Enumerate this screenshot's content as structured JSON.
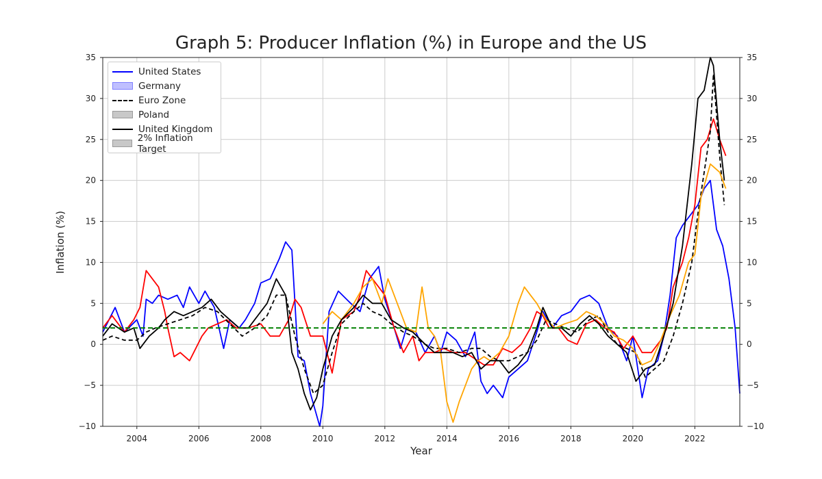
{
  "chart_data": {
    "type": "line",
    "title": "Graph 5: Producer Inflation (%) in Europe and the US",
    "xlabel": "Year",
    "ylabel": "Inflation (%)",
    "xlim": [
      2002.9,
      2023.45
    ],
    "ylim": [
      -10,
      35
    ],
    "x_ticks": [
      "2004",
      "2006",
      "2008",
      "2010",
      "2012",
      "2014",
      "2016",
      "2018",
      "2020",
      "2022"
    ],
    "y_ticks": [
      "−10",
      "−5",
      "0",
      "5",
      "10",
      "15",
      "20",
      "25",
      "30",
      "35"
    ],
    "grid": true,
    "legend_position": "top-left",
    "legend": [
      {
        "label": "United States",
        "style": "line",
        "color": "#0000ff"
      },
      {
        "label": "Germany",
        "style": "patch",
        "color": "#bfbfff"
      },
      {
        "label": "Euro Zone",
        "style": "dashed",
        "color": "#000000"
      },
      {
        "label": "Poland",
        "style": "patch",
        "color": "#c8c8c8"
      },
      {
        "label": "United Kingdom",
        "style": "line",
        "color": "#000000"
      },
      {
        "label": "2% Inflation Target",
        "style": "patch",
        "color": "#c8c8c8"
      }
    ],
    "target_line": {
      "y": 2,
      "color": "#008000"
    },
    "series": [
      {
        "name": "United States",
        "color": "#0000ff",
        "dash": "",
        "x": [
          2002.9,
          2003.1,
          2003.3,
          2003.6,
          2004.0,
          2004.2,
          2004.3,
          2004.5,
          2004.7,
          2005.0,
          2005.3,
          2005.5,
          2005.7,
          2006.0,
          2006.2,
          2006.5,
          2006.8,
          2007.0,
          2007.3,
          2007.5,
          2007.8,
          2008.0,
          2008.3,
          2008.6,
          2008.8,
          2009.0,
          2009.2,
          2009.4,
          2009.6,
          2009.9,
          2010.0,
          2010.2,
          2010.5,
          2010.9,
          2011.2,
          2011.5,
          2011.8,
          2012.0,
          2012.3,
          2012.5,
          2012.7,
          2013.0,
          2013.3,
          2013.6,
          2013.8,
          2014.0,
          2014.3,
          2014.6,
          2014.9,
          2015.1,
          2015.3,
          2015.5,
          2015.8,
          2016.0,
          2016.3,
          2016.6,
          2016.9,
          2017.1,
          2017.4,
          2017.7,
          2018.0,
          2018.3,
          2018.6,
          2018.9,
          2019.2,
          2019.5,
          2019.8,
          2020.0,
          2020.3,
          2020.5,
          2020.8,
          2021.0,
          2021.2,
          2021.4,
          2021.6,
          2021.9,
          2022.1,
          2022.3,
          2022.5,
          2022.7,
          2022.9,
          2023.1,
          2023.3,
          2023.45
        ],
        "y": [
          1.5,
          3,
          4.5,
          1.5,
          3,
          1,
          5.5,
          5,
          6,
          5.5,
          6,
          4.5,
          7,
          5,
          6.5,
          4.5,
          -0.5,
          3,
          2,
          3,
          5,
          7.5,
          8,
          10.5,
          12.5,
          11.5,
          -1.5,
          -2,
          -6,
          -10,
          -7.5,
          4,
          6.5,
          5,
          4,
          8,
          9.5,
          5.5,
          2,
          -0.5,
          2,
          1.5,
          -1,
          1,
          -1,
          1.5,
          0.5,
          -1.5,
          1.5,
          -4.5,
          -6,
          -5,
          -6.5,
          -4,
          -3,
          -2,
          1.5,
          4,
          2,
          3.5,
          4,
          5.5,
          6,
          5,
          2,
          1,
          -2,
          1,
          -6.5,
          -3,
          -2,
          1,
          6,
          13,
          14.5,
          16,
          17,
          19,
          20,
          14,
          12,
          8,
          2,
          -6
        ]
      },
      {
        "name": "Germany",
        "color": "#ff0000",
        "dash": "",
        "x": [
          2002.9,
          2003.2,
          2003.6,
          2003.9,
          2004.1,
          2004.3,
          2004.5,
          2004.7,
          2004.9,
          2005.0,
          2005.2,
          2005.4,
          2005.7,
          2005.9,
          2006.1,
          2006.3,
          2006.6,
          2006.9,
          2007.2,
          2007.6,
          2008.0,
          2008.3,
          2008.6,
          2008.9,
          2009.1,
          2009.3,
          2009.6,
          2009.8,
          2010.0,
          2010.3,
          2010.6,
          2011.0,
          2011.2,
          2011.4,
          2011.6,
          2011.8,
          2012.0,
          2012.3,
          2012.6,
          2012.9,
          2013.1,
          2013.3,
          2013.6,
          2013.9,
          2014.2,
          2014.6,
          2015.0,
          2015.2,
          2015.5,
          2015.8,
          2016.1,
          2016.4,
          2016.7,
          2016.9,
          2017.1,
          2017.3,
          2017.6,
          2017.9,
          2018.2,
          2018.5,
          2018.8,
          2019.1,
          2019.4,
          2019.7,
          2020.0,
          2020.3,
          2020.6,
          2020.9,
          2021.1,
          2021.3,
          2021.6,
          2021.8,
          2022.0,
          2022.2,
          2022.4,
          2022.6,
          2022.8,
          2023.0
        ],
        "y": [
          2,
          3.5,
          1.5,
          3,
          4.5,
          9,
          8,
          7,
          4,
          2,
          -1.5,
          -1,
          -2,
          -0.5,
          1,
          2,
          2.5,
          3,
          2,
          2,
          2.5,
          1,
          1,
          3,
          5.5,
          4.5,
          1,
          1,
          1,
          -3.5,
          3,
          4,
          6,
          9,
          8,
          7,
          6,
          2,
          -1,
          1,
          -2,
          -1,
          -1,
          -0.5,
          -1,
          -1,
          -2,
          -2.5,
          -2.5,
          -0.5,
          -1,
          0,
          2,
          4,
          3.5,
          2,
          2,
          0.5,
          0,
          2.5,
          3,
          2,
          1.5,
          -0.5,
          1,
          -1,
          -1,
          0.5,
          2,
          7,
          10,
          13,
          17,
          24,
          25,
          27.5,
          25,
          23
        ]
      },
      {
        "name": "Euro Zone",
        "color": "#000000",
        "dash": "6,4",
        "x": [
          2002.9,
          2003.2,
          2003.6,
          2004.0,
          2004.3,
          2004.6,
          2005.0,
          2005.4,
          2005.8,
          2006.2,
          2006.6,
          2007.0,
          2007.4,
          2007.8,
          2008.2,
          2008.5,
          2008.8,
          2009.1,
          2009.4,
          2009.7,
          2010.0,
          2010.3,
          2010.6,
          2011.0,
          2011.3,
          2011.6,
          2011.9,
          2012.2,
          2012.6,
          2012.9,
          2013.3,
          2013.6,
          2014.0,
          2014.4,
          2014.8,
          2015.1,
          2015.4,
          2015.7,
          2016.0,
          2016.3,
          2016.6,
          2016.9,
          2017.2,
          2017.5,
          2017.8,
          2018.2,
          2018.6,
          2018.9,
          2019.2,
          2019.5,
          2019.8,
          2020.1,
          2020.4,
          2020.7,
          2021.0,
          2021.3,
          2021.6,
          2021.9,
          2022.1,
          2022.3,
          2022.5,
          2022.6,
          2022.8,
          2022.95
        ],
        "y": [
          0.5,
          1,
          0.5,
          0.5,
          1.5,
          2,
          2.5,
          3,
          3.5,
          4.5,
          4,
          2.5,
          1,
          2,
          3.5,
          6,
          6,
          1,
          -3,
          -6,
          -5,
          -1,
          2.5,
          4,
          5,
          4,
          3.5,
          2.5,
          1.5,
          1,
          0,
          -0.5,
          -0.5,
          -1,
          -0.5,
          -0.5,
          -1.5,
          -2,
          -2,
          -1.5,
          -1,
          0.5,
          3,
          2.5,
          2,
          1.5,
          3,
          3.5,
          1.5,
          0,
          -0.5,
          -1,
          -4,
          -3,
          -2,
          1,
          5,
          10,
          16,
          21,
          26,
          33,
          23,
          17
        ]
      },
      {
        "name": "Poland",
        "color": "#ffa500",
        "dash": "",
        "x": [
          2010.0,
          2010.3,
          2010.6,
          2011.0,
          2011.3,
          2011.6,
          2011.9,
          2012.1,
          2012.4,
          2012.7,
          2013.0,
          2013.2,
          2013.4,
          2013.6,
          2013.8,
          2014.0,
          2014.2,
          2014.4,
          2014.6,
          2014.8,
          2015.0,
          2015.2,
          2015.4,
          2015.7,
          2016.0,
          2016.3,
          2016.5,
          2016.7,
          2016.9,
          2017.2,
          2017.5,
          2017.8,
          2018.2,
          2018.5,
          2018.8,
          2019.1,
          2019.4,
          2019.7,
          2020.0,
          2020.3,
          2020.6,
          2020.9,
          2021.2,
          2021.5,
          2021.8,
          2022.0,
          2022.2,
          2022.5,
          2022.8,
          2023.0
        ],
        "y": [
          2.5,
          4,
          3,
          5,
          7,
          8,
          5,
          8,
          5,
          2,
          1.5,
          7,
          2,
          1,
          -1,
          -7,
          -9.5,
          -7,
          -5,
          -3,
          -2,
          -1.5,
          -2,
          -1,
          1,
          5,
          7,
          6,
          5,
          3,
          2,
          2.5,
          3,
          4,
          3.5,
          2.5,
          1,
          0.5,
          -0.5,
          -2.5,
          -2,
          0.5,
          3.5,
          6,
          10,
          11,
          18,
          22,
          21,
          19
        ]
      },
      {
        "name": "United Kingdom",
        "color": "#000000",
        "dash": "",
        "x": [
          2002.9,
          2003.2,
          2003.6,
          2003.9,
          2004.1,
          2004.4,
          2004.7,
          2004.9,
          2005.2,
          2005.5,
          2005.8,
          2006.1,
          2006.4,
          2006.7,
          2007.0,
          2007.3,
          2007.6,
          2007.9,
          2008.2,
          2008.5,
          2008.8,
          2009.0,
          2009.2,
          2009.4,
          2009.6,
          2009.8,
          2010.0,
          2010.3,
          2010.6,
          2011.0,
          2011.3,
          2011.6,
          2011.9,
          2012.2,
          2012.6,
          2012.9,
          2013.3,
          2013.6,
          2013.9,
          2014.2,
          2014.5,
          2014.8,
          2015.1,
          2015.4,
          2015.7,
          2016.0,
          2016.3,
          2016.6,
          2016.9,
          2017.1,
          2017.4,
          2017.7,
          2018.0,
          2018.3,
          2018.6,
          2018.9,
          2019.2,
          2019.5,
          2019.8,
          2020.1,
          2020.4,
          2020.7,
          2021.0,
          2021.3,
          2021.6,
          2021.9,
          2022.1,
          2022.3,
          2022.5,
          2022.6,
          2022.8,
          2022.95
        ],
        "y": [
          1,
          2.5,
          1.5,
          2,
          -0.5,
          1,
          2,
          3,
          4,
          3.5,
          4,
          4.5,
          5.5,
          4,
          3,
          2,
          2,
          3.5,
          5,
          8,
          6,
          -1,
          -3,
          -6,
          -8,
          -6.5,
          -3,
          1,
          3,
          4.5,
          6,
          5,
          5,
          3,
          2,
          1.5,
          0,
          -1,
          -1,
          -1,
          -1.5,
          -1,
          -3,
          -2,
          -2,
          -3.5,
          -2.5,
          -1,
          2,
          4.5,
          2,
          2,
          1,
          2.5,
          3.5,
          2.5,
          1,
          0,
          -1,
          -4.5,
          -3,
          -2.5,
          1,
          5,
          12,
          22,
          30,
          31,
          35,
          34,
          25,
          20
        ]
      }
    ]
  }
}
